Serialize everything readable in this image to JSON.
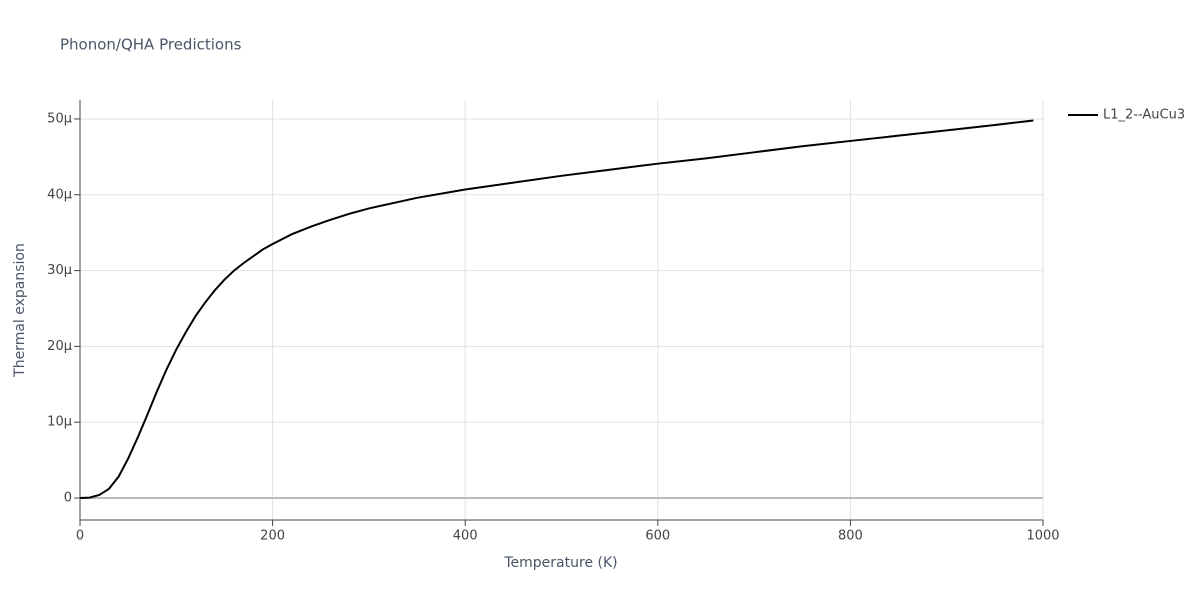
{
  "chart_data": {
    "type": "line",
    "title": "Phonon/QHA Predictions",
    "x_label": "Temperature (K)",
    "y_label": "Thermal expansion",
    "xlim": [
      0,
      1000
    ],
    "xticks": [
      0,
      200,
      400,
      600,
      800,
      1000
    ],
    "ylim": [
      -2.9e-06,
      5.25e-05
    ],
    "yticks": [
      0,
      {
        "value": 1e-05,
        "label": "10µ"
      },
      {
        "value": 2e-05,
        "label": "20µ"
      },
      {
        "value": 3e-05,
        "label": "30µ"
      },
      {
        "value": 4e-05,
        "label": "40µ"
      },
      {
        "value": 5e-05,
        "label": "50µ"
      }
    ],
    "grid": true,
    "legend_position": "right",
    "x": [
      0,
      10,
      20,
      30,
      40,
      50,
      60,
      70,
      80,
      90,
      100,
      110,
      120,
      130,
      140,
      150,
      160,
      170,
      180,
      190,
      200,
      220,
      240,
      260,
      280,
      300,
      350,
      400,
      450,
      500,
      550,
      600,
      650,
      700,
      750,
      800,
      850,
      900,
      950,
      990
    ],
    "series": [
      {
        "name": "L1_2--AuCu3",
        "color": "#000000",
        "values": [
          0,
          5e-08,
          4e-07,
          1.2e-06,
          2.8e-06,
          5.2e-06,
          8e-06,
          1.1e-05,
          1.41e-05,
          1.7e-05,
          1.96e-05,
          2.19e-05,
          2.4e-05,
          2.58e-05,
          2.74e-05,
          2.88e-05,
          3e-05,
          3.1e-05,
          3.19e-05,
          3.28e-05,
          3.35e-05,
          3.48e-05,
          3.58e-05,
          3.67e-05,
          3.75e-05,
          3.82e-05,
          3.96e-05,
          4.07e-05,
          4.16e-05,
          4.25e-05,
          4.33e-05,
          4.41e-05,
          4.48e-05,
          4.56e-05,
          4.64e-05,
          4.71e-05,
          4.78e-05,
          4.85e-05,
          4.92e-05,
          4.98e-05
        ]
      }
    ]
  }
}
